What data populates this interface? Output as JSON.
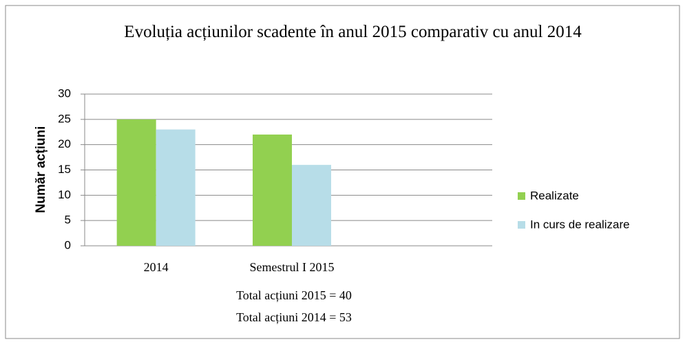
{
  "chart_data": {
    "type": "bar",
    "title": "Evoluția acțiunilor  scadente în anul 2015 comparativ  cu anul 2014",
    "y_label": "Număr acțiuni",
    "categories": [
      "2014",
      "Semestrul I 2015",
      null
    ],
    "series": [
      {
        "name": "Realizate",
        "color": "#92d050",
        "values": [
          25,
          22,
          null
        ]
      },
      {
        "name": "In curs de realizare",
        "color": "#b7dde8",
        "values": [
          23,
          16,
          null
        ]
      }
    ],
    "ylim": [
      0,
      30
    ],
    "yticks": [
      0,
      5,
      10,
      15,
      20,
      25,
      30
    ],
    "grid": true,
    "legend": "right",
    "annotations": [
      "Total acțiuni 2015  = 40",
      "Total acțiuni 2014 = 53"
    ]
  }
}
